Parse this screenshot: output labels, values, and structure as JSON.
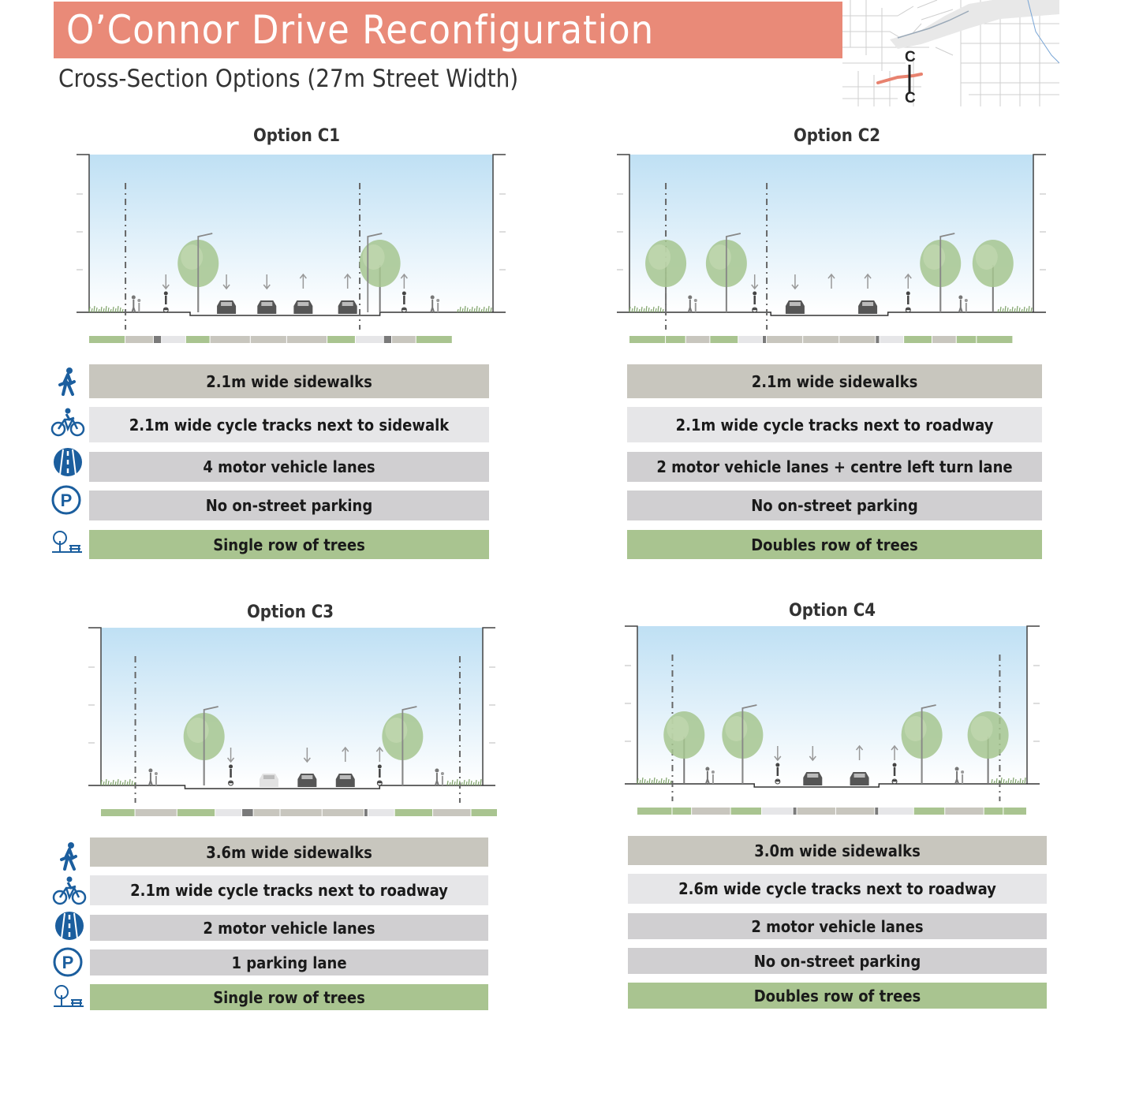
{
  "header": {
    "title": "O’Connor Drive Reconfiguration",
    "subtitle": "Cross-Section Options (27m Street Width)"
  },
  "keymap": {
    "label_top": "C",
    "label_bottom": "C"
  },
  "colors": {
    "title_bar": "#e98a78",
    "sidewalk": "#c8c6be",
    "cycle": "#e6e6e8",
    "lane": "#d0cfd1",
    "tree": "#a9c490",
    "icon_blue": "#1b5e9e",
    "sky_top": "#bfe0f4"
  },
  "icons": [
    "pedestrian-icon",
    "bicycle-icon",
    "road-icon",
    "parking-icon",
    "tree-bench-icon"
  ],
  "options": [
    {
      "title": "Option C1",
      "features": {
        "sidewalks": "2.1m wide sidewalks",
        "cycle": "2.1m wide cycle tracks next to sidewalk",
        "lanes": "4 motor vehicle lanes",
        "parking": "No on-street parking",
        "trees": "Single row of trees"
      }
    },
    {
      "title": "Option C2",
      "features": {
        "sidewalks": "2.1m wide sidewalks",
        "cycle": "2.1m wide cycle tracks next to roadway",
        "lanes": "2 motor vehicle lanes + centre left turn lane",
        "parking": "No on-street parking",
        "trees": "Doubles row of trees"
      }
    },
    {
      "title": "Option C3",
      "features": {
        "sidewalks": "3.6m wide sidewalks",
        "cycle": "2.1m wide cycle tracks next to roadway",
        "lanes": "2 motor vehicle lanes",
        "parking": "1 parking lane",
        "trees": "Single row of trees"
      }
    },
    {
      "title": "Option C4",
      "features": {
        "sidewalks": "3.0m wide sidewalks",
        "cycle": "2.6m wide cycle tracks next to roadway",
        "lanes": "2 motor vehicle lanes",
        "parking": "No on-street parking",
        "trees": "Doubles row of trees"
      }
    }
  ]
}
